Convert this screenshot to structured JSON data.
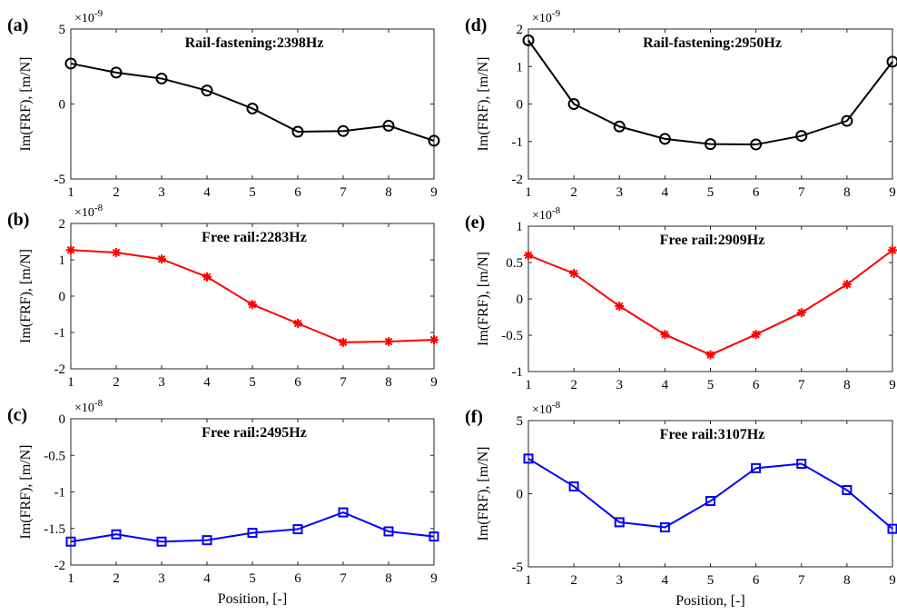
{
  "xlabel": "Position, [-]",
  "chart_data": [
    {
      "panel": "(a)",
      "type": "line",
      "title": "Rail-fastening:2398Hz",
      "ylabel": "Im(FRF), [m/N]",
      "y_exponent": "-9",
      "x": [
        1,
        2,
        3,
        4,
        5,
        6,
        7,
        8,
        9
      ],
      "values": [
        2.7,
        2.1,
        1.7,
        0.9,
        -0.3,
        -1.85,
        -1.8,
        -1.45,
        -2.45
      ],
      "xlim": [
        1,
        9
      ],
      "ylim": [
        -5,
        5
      ],
      "yticks": [
        -5,
        0,
        5
      ],
      "xticks": [
        1,
        2,
        3,
        4,
        5,
        6,
        7,
        8,
        9
      ],
      "color": "#000000",
      "marker": "circle"
    },
    {
      "panel": "(b)",
      "type": "line",
      "title": "Free rail:2283Hz",
      "ylabel": "Im(FRF), [m/N]",
      "y_exponent": "-8",
      "x": [
        1,
        2,
        3,
        4,
        5,
        6,
        7,
        8,
        9
      ],
      "values": [
        1.27,
        1.2,
        1.02,
        0.53,
        -0.23,
        -0.75,
        -1.27,
        -1.25,
        -1.2
      ],
      "xlim": [
        1,
        9
      ],
      "ylim": [
        -2,
        2
      ],
      "yticks": [
        -2,
        -1,
        0,
        1,
        2
      ],
      "xticks": [
        1,
        2,
        3,
        4,
        5,
        6,
        7,
        8,
        9
      ],
      "color": "#ff0000",
      "marker": "star"
    },
    {
      "panel": "(c)",
      "type": "line",
      "title": "Free rail:2495Hz",
      "ylabel": "Im(FRF), [m/N]",
      "y_exponent": "-8",
      "x": [
        1,
        2,
        3,
        4,
        5,
        6,
        7,
        8,
        9
      ],
      "values": [
        -1.68,
        -1.58,
        -1.68,
        -1.66,
        -1.56,
        -1.51,
        -1.28,
        -1.54,
        -1.61
      ],
      "xlim": [
        1,
        9
      ],
      "ylim": [
        -2,
        0
      ],
      "yticks": [
        -2,
        -1.5,
        -1,
        -0.5,
        0
      ],
      "xticks": [
        1,
        2,
        3,
        4,
        5,
        6,
        7,
        8,
        9
      ],
      "color": "#0000ff",
      "marker": "square"
    },
    {
      "panel": "(d)",
      "type": "line",
      "title": "Rail-fastening:2950Hz",
      "ylabel": "Im(FRF), [m/N]",
      "y_exponent": "-9",
      "x": [
        1,
        2,
        3,
        4,
        5,
        6,
        7,
        8,
        9
      ],
      "values": [
        1.7,
        0.0,
        -0.6,
        -0.93,
        -1.07,
        -1.08,
        -0.85,
        -0.45,
        1.13
      ],
      "xlim": [
        1,
        9
      ],
      "ylim": [
        -2,
        2
      ],
      "yticks": [
        -2,
        -1,
        0,
        1,
        2
      ],
      "xticks": [
        1,
        2,
        3,
        4,
        5,
        6,
        7,
        8,
        9
      ],
      "color": "#000000",
      "marker": "circle"
    },
    {
      "panel": "(e)",
      "type": "line",
      "title": "Free rail:2909Hz",
      "ylabel": "Im(FRF), [m/N]",
      "y_exponent": "-8",
      "x": [
        1,
        2,
        3,
        4,
        5,
        6,
        7,
        8,
        9
      ],
      "values": [
        0.6,
        0.35,
        -0.1,
        -0.49,
        -0.77,
        -0.49,
        -0.19,
        0.2,
        0.67
      ],
      "xlim": [
        1,
        9
      ],
      "ylim": [
        -1,
        1
      ],
      "yticks": [
        -1,
        -0.5,
        0,
        0.5,
        1
      ],
      "xticks": [
        1,
        2,
        3,
        4,
        5,
        6,
        7,
        8,
        9
      ],
      "color": "#ff0000",
      "marker": "star"
    },
    {
      "panel": "(f)",
      "type": "line",
      "title": "Free rail:3107Hz",
      "ylabel": "Im(FRF), [m/N]",
      "y_exponent": "-8",
      "x": [
        1,
        2,
        3,
        4,
        5,
        6,
        7,
        8,
        9
      ],
      "values": [
        2.4,
        0.5,
        -1.95,
        -2.3,
        -0.5,
        1.75,
        2.05,
        0.25,
        -2.4
      ],
      "xlim": [
        1,
        9
      ],
      "ylim": [
        -5,
        5
      ],
      "yticks": [
        -5,
        0,
        5
      ],
      "xticks": [
        1,
        2,
        3,
        4,
        5,
        6,
        7,
        8,
        9
      ],
      "color": "#0000ff",
      "marker": "square"
    }
  ]
}
